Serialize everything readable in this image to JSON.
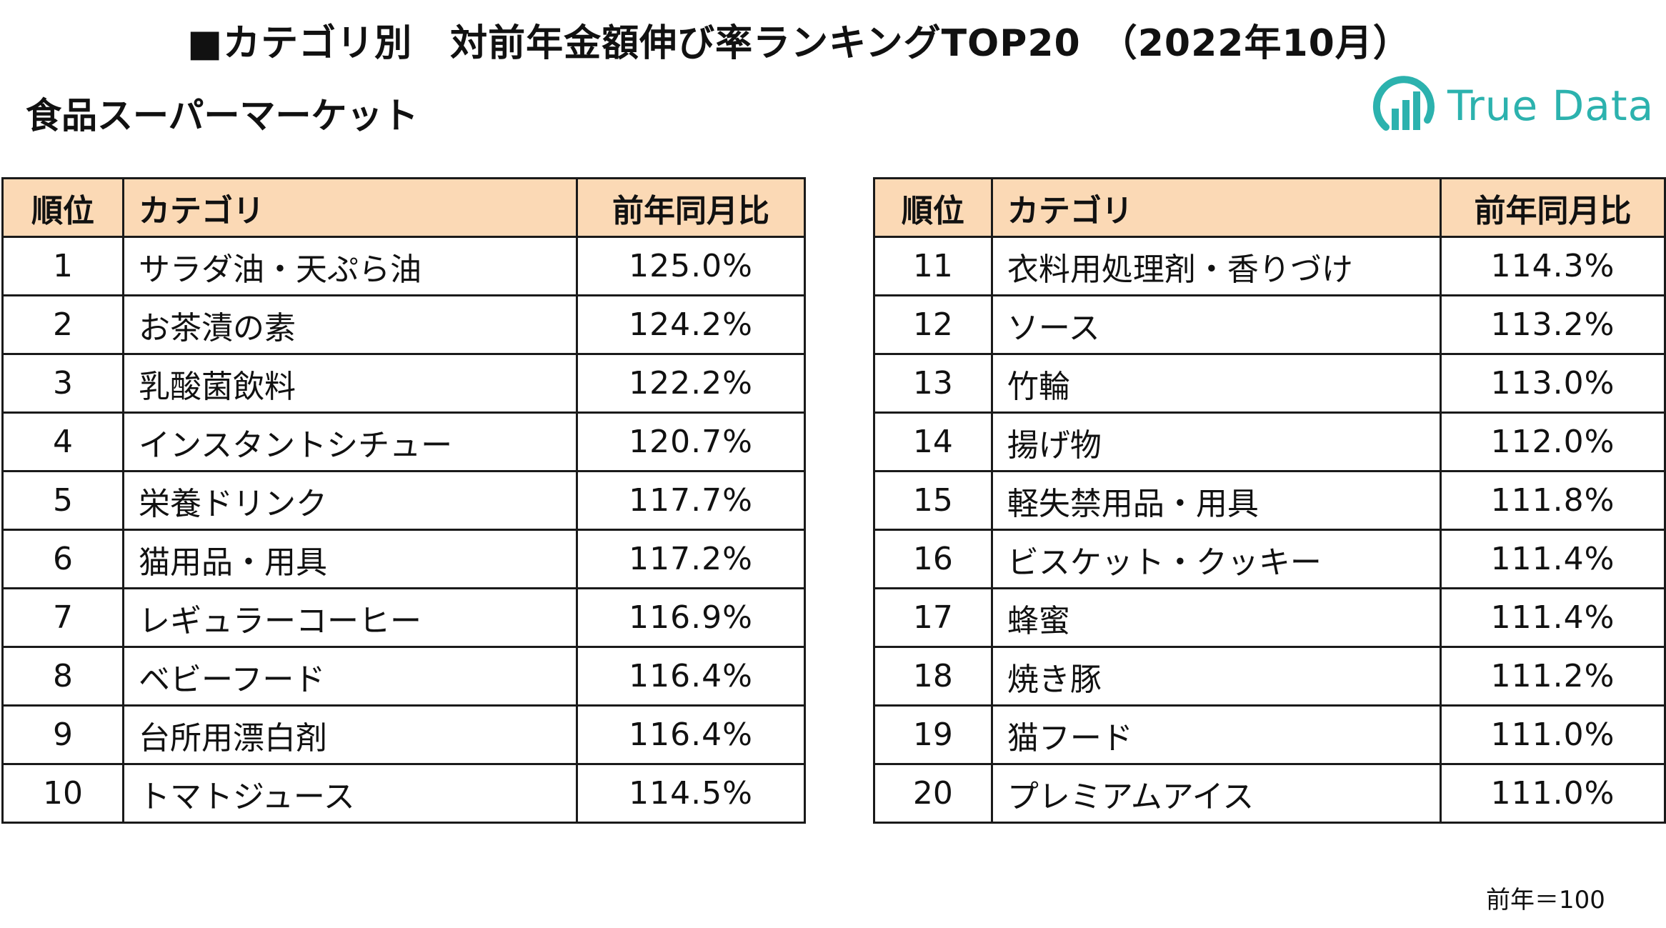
{
  "title": "■カテゴリ別　対前年金額伸び率ランキングTOP20　（2022年10月）",
  "subtitle": "食品スーパーマーケット",
  "logo": {
    "text": "True Data",
    "color": "#2cb2ae"
  },
  "table_headers": {
    "rank": "順位",
    "category": "カテゴリ",
    "ratio": "前年同月比"
  },
  "header_color": "#fbd9b5",
  "left_table": [
    {
      "rank": "1",
      "category": "サラダ油・天ぷら油",
      "ratio": "125.0%"
    },
    {
      "rank": "2",
      "category": "お茶漬の素",
      "ratio": "124.2%"
    },
    {
      "rank": "3",
      "category": "乳酸菌飲料",
      "ratio": "122.2%"
    },
    {
      "rank": "4",
      "category": "インスタントシチュー",
      "ratio": "120.7%"
    },
    {
      "rank": "5",
      "category": "栄養ドリンク",
      "ratio": "117.7%"
    },
    {
      "rank": "6",
      "category": "猫用品・用具",
      "ratio": "117.2%"
    },
    {
      "rank": "7",
      "category": "レギュラーコーヒー",
      "ratio": "116.9%"
    },
    {
      "rank": "8",
      "category": "ベビーフード",
      "ratio": "116.4%"
    },
    {
      "rank": "9",
      "category": "台所用漂白剤",
      "ratio": "116.4%"
    },
    {
      "rank": "10",
      "category": "トマトジュース",
      "ratio": "114.5%"
    }
  ],
  "right_table": [
    {
      "rank": "11",
      "category": "衣料用処理剤・香りづけ",
      "ratio": "114.3%"
    },
    {
      "rank": "12",
      "category": "ソース",
      "ratio": "113.2%"
    },
    {
      "rank": "13",
      "category": "竹輪",
      "ratio": "113.0%"
    },
    {
      "rank": "14",
      "category": "揚げ物",
      "ratio": "112.0%"
    },
    {
      "rank": "15",
      "category": "軽失禁用品・用具",
      "ratio": "111.8%"
    },
    {
      "rank": "16",
      "category": "ビスケット・クッキー",
      "ratio": "111.4%"
    },
    {
      "rank": "17",
      "category": "蜂蜜",
      "ratio": "111.4%"
    },
    {
      "rank": "18",
      "category": "焼き豚",
      "ratio": "111.2%"
    },
    {
      "rank": "19",
      "category": "猫フード",
      "ratio": "111.0%"
    },
    {
      "rank": "20",
      "category": "プレミアムアイス",
      "ratio": "111.0%"
    }
  ],
  "note": "前年＝100"
}
